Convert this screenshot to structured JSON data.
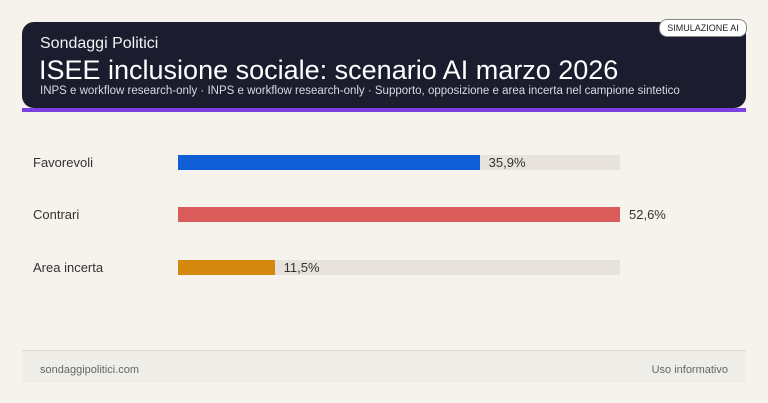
{
  "header": {
    "brand": "Sondaggi Politici",
    "title": "ISEE inclusione sociale: scenario AI marzo 2026",
    "subtitle": "INPS e workflow research-only · INPS e workflow research-only · Supporto, opposizione e area incerta nel campione sintetico",
    "badge": "SIMULAZIONE AI",
    "accent_color": "#7b3fe4"
  },
  "chart_data": {
    "type": "bar",
    "orientation": "horizontal",
    "categories": [
      "Favorevoli",
      "Contrari",
      "Area incerta"
    ],
    "values": [
      35.9,
      52.6,
      11.5
    ],
    "value_labels": [
      "35,9%",
      "52,6%",
      "11,5%"
    ],
    "colors": [
      "#0f5ed8",
      "#d95b5a",
      "#d4890e"
    ],
    "xlim": [
      0,
      52.6
    ],
    "grid": false
  },
  "footer": {
    "left": "sondaggipolitici.com",
    "right": "Uso informativo"
  }
}
